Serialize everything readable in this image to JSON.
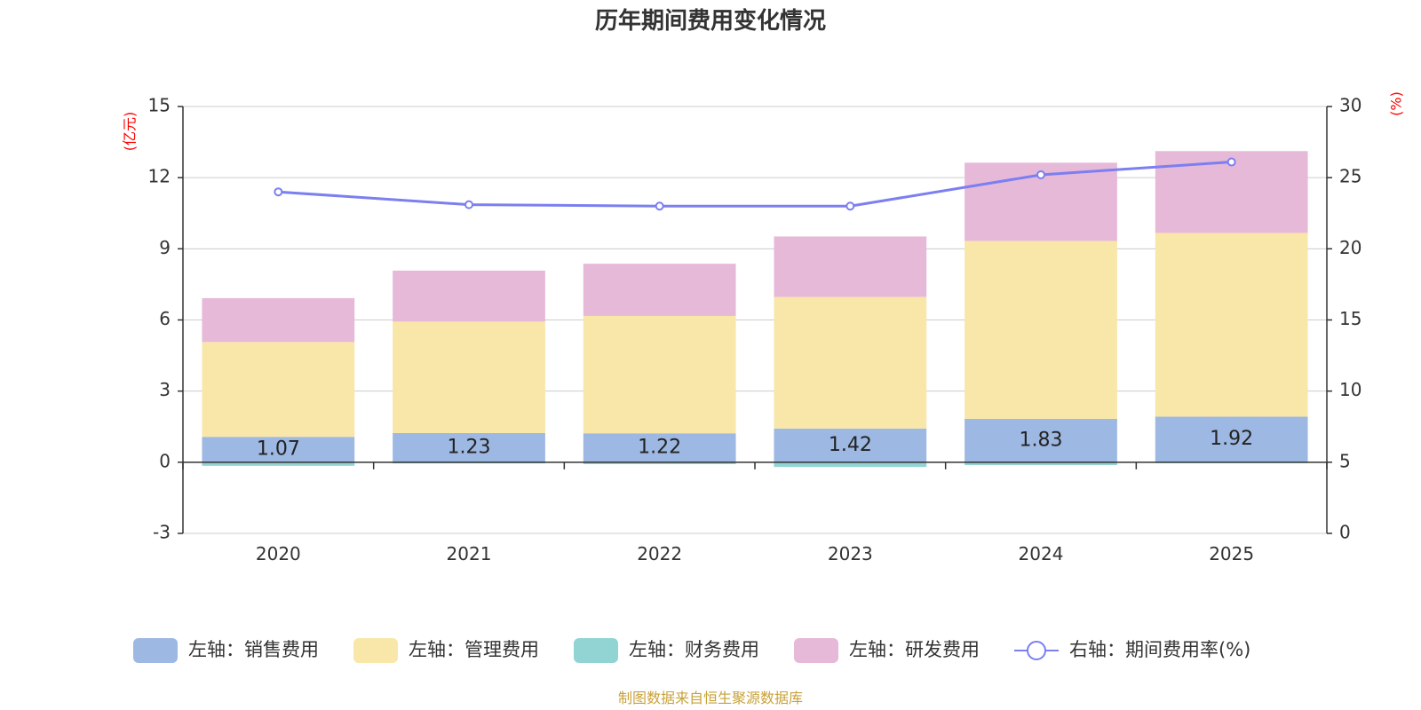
{
  "chart_data": {
    "type": "bar",
    "title": "历年期间费用变化情况",
    "categories": [
      "2020",
      "2021",
      "2022",
      "2023",
      "2024",
      "2025"
    ],
    "left_axis": {
      "unit": "(亿元)",
      "ylim": [
        -3,
        15
      ],
      "ticks": [
        -3,
        0,
        3,
        6,
        9,
        12,
        15
      ]
    },
    "right_axis": {
      "unit": "(%)",
      "ylim": [
        0,
        30
      ],
      "ticks": [
        0,
        5,
        10,
        15,
        20,
        25,
        30
      ]
    },
    "series": [
      {
        "name": "左轴：销售费用",
        "type": "bar",
        "stack": "total",
        "axis": "left",
        "color": "#9db8e2",
        "values": [
          1.07,
          1.23,
          1.22,
          1.42,
          1.83,
          1.92
        ],
        "labels": [
          "1.07",
          "1.23",
          "1.22",
          "1.42",
          "1.83",
          "1.92"
        ]
      },
      {
        "name": "左轴：管理费用",
        "type": "bar",
        "stack": "total",
        "axis": "left",
        "color": "#f8e7a8",
        "values": [
          4.0,
          4.7,
          4.95,
          5.55,
          7.5,
          7.75
        ]
      },
      {
        "name": "左轴：财务费用",
        "type": "bar",
        "stack": "negative",
        "axis": "left",
        "color": "#92d3d3",
        "values": [
          -0.15,
          -0.05,
          -0.08,
          -0.2,
          -0.12,
          -0.03
        ]
      },
      {
        "name": "左轴：研发费用",
        "type": "bar",
        "stack": "total",
        "axis": "left",
        "color": "#e6b9d9",
        "values": [
          1.85,
          2.15,
          2.2,
          2.55,
          3.3,
          3.45
        ]
      },
      {
        "name": "右轴：期间费用率(%)",
        "type": "line",
        "axis": "right",
        "color": "#7b7ff0",
        "values": [
          24.0,
          23.1,
          23.0,
          23.0,
          25.2,
          26.1
        ]
      }
    ],
    "legend_position": "bottom",
    "grid": true
  },
  "source_note": "制图数据来自恒生聚源数据库"
}
